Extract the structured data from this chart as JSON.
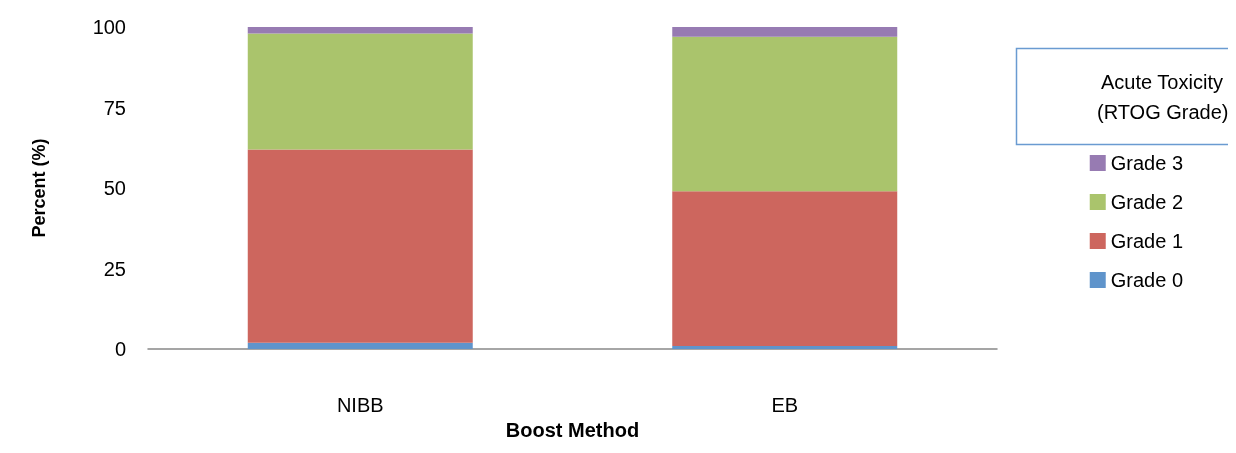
{
  "chart_data": {
    "type": "bar",
    "stacked": true,
    "xlabel": "Boost Method",
    "ylabel": "Percent (%)",
    "legend_title": "Acute Toxicity (RTOG Grade)",
    "categories": [
      "NIBB",
      "EB"
    ],
    "series": [
      {
        "name": "Grade 0",
        "color": "#5f94cb",
        "values": [
          2,
          1
        ]
      },
      {
        "name": "Grade 1",
        "color": "#cd665e",
        "values": [
          60,
          48
        ]
      },
      {
        "name": "Grade 2",
        "color": "#aac46c",
        "values": [
          36,
          48
        ]
      },
      {
        "name": "Grade 3",
        "color": "#977bb2",
        "values": [
          2,
          3
        ]
      }
    ],
    "ylim": [
      0,
      100
    ],
    "yticks": [
      0,
      25,
      50,
      75,
      100
    ],
    "grid": false,
    "legend": "right"
  }
}
